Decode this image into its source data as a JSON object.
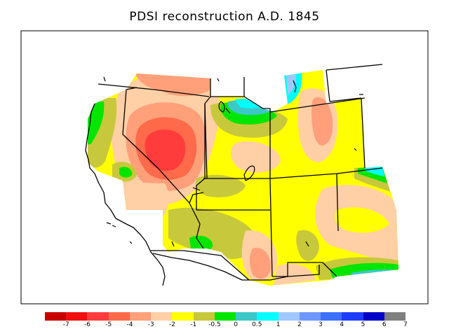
{
  "title": "PDSI reconstruction A.D. 1845",
  "colorbar": {
    "colors": [
      "#c80000",
      "#f01010",
      "#ff3c3c",
      "#ff6a4a",
      "#ffa07a",
      "#ffcfa6",
      "#ffff00",
      "#c8c83c",
      "#00e600",
      "#3cc8c8",
      "#00ffff",
      "#a0c8ff",
      "#6e96ff",
      "#3c6eff",
      "#1e3cff",
      "#0000c8",
      "#808080"
    ],
    "tick_labels": [
      "-7",
      "-6",
      "-5",
      "-4",
      "-3",
      "-2",
      "-1",
      "-0.5",
      "0",
      "0.5",
      "1",
      "2",
      "3",
      "4",
      "5",
      "6",
      "7"
    ]
  },
  "palette": {
    "red": "#ff3c3c",
    "orange_red": "#ff6a4a",
    "salmon": "#ffa07a",
    "peach": "#ffcfa6",
    "yellow": "#ffff00",
    "olive": "#c8c83c",
    "green": "#00e600",
    "teal": "#3cc8c8",
    "cyan": "#00ffff",
    "light_blue": "#a0c8ff"
  }
}
